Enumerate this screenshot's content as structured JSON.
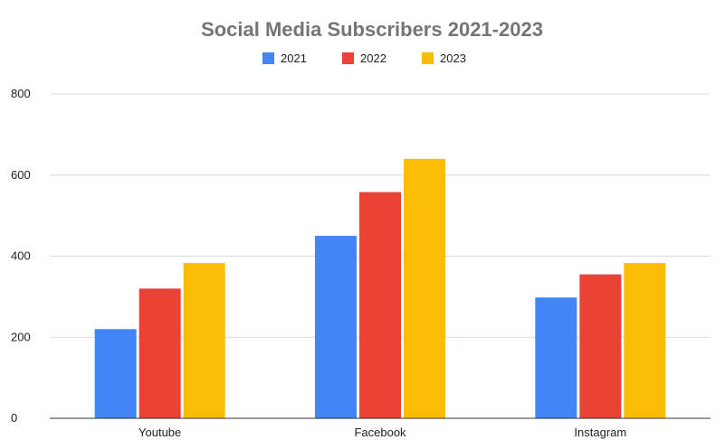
{
  "chart_data": {
    "type": "bar",
    "title": "Social Media Subscribers 2021-2023",
    "xlabel": "",
    "ylabel": "",
    "categories": [
      "Youtube",
      "Facebook",
      "Instagram"
    ],
    "series": [
      {
        "name": "2021",
        "values": [
          220,
          450,
          298
        ],
        "color": "#4285f4"
      },
      {
        "name": "2022",
        "values": [
          320,
          558,
          355
        ],
        "color": "#ea4335"
      },
      {
        "name": "2023",
        "values": [
          383,
          640,
          383
        ],
        "color": "#fbbc04"
      }
    ],
    "ylim": [
      0,
      800
    ],
    "yticks": [
      "0",
      "200",
      "400",
      "600",
      "800"
    ],
    "grid": true,
    "legend_position": "top-center"
  }
}
